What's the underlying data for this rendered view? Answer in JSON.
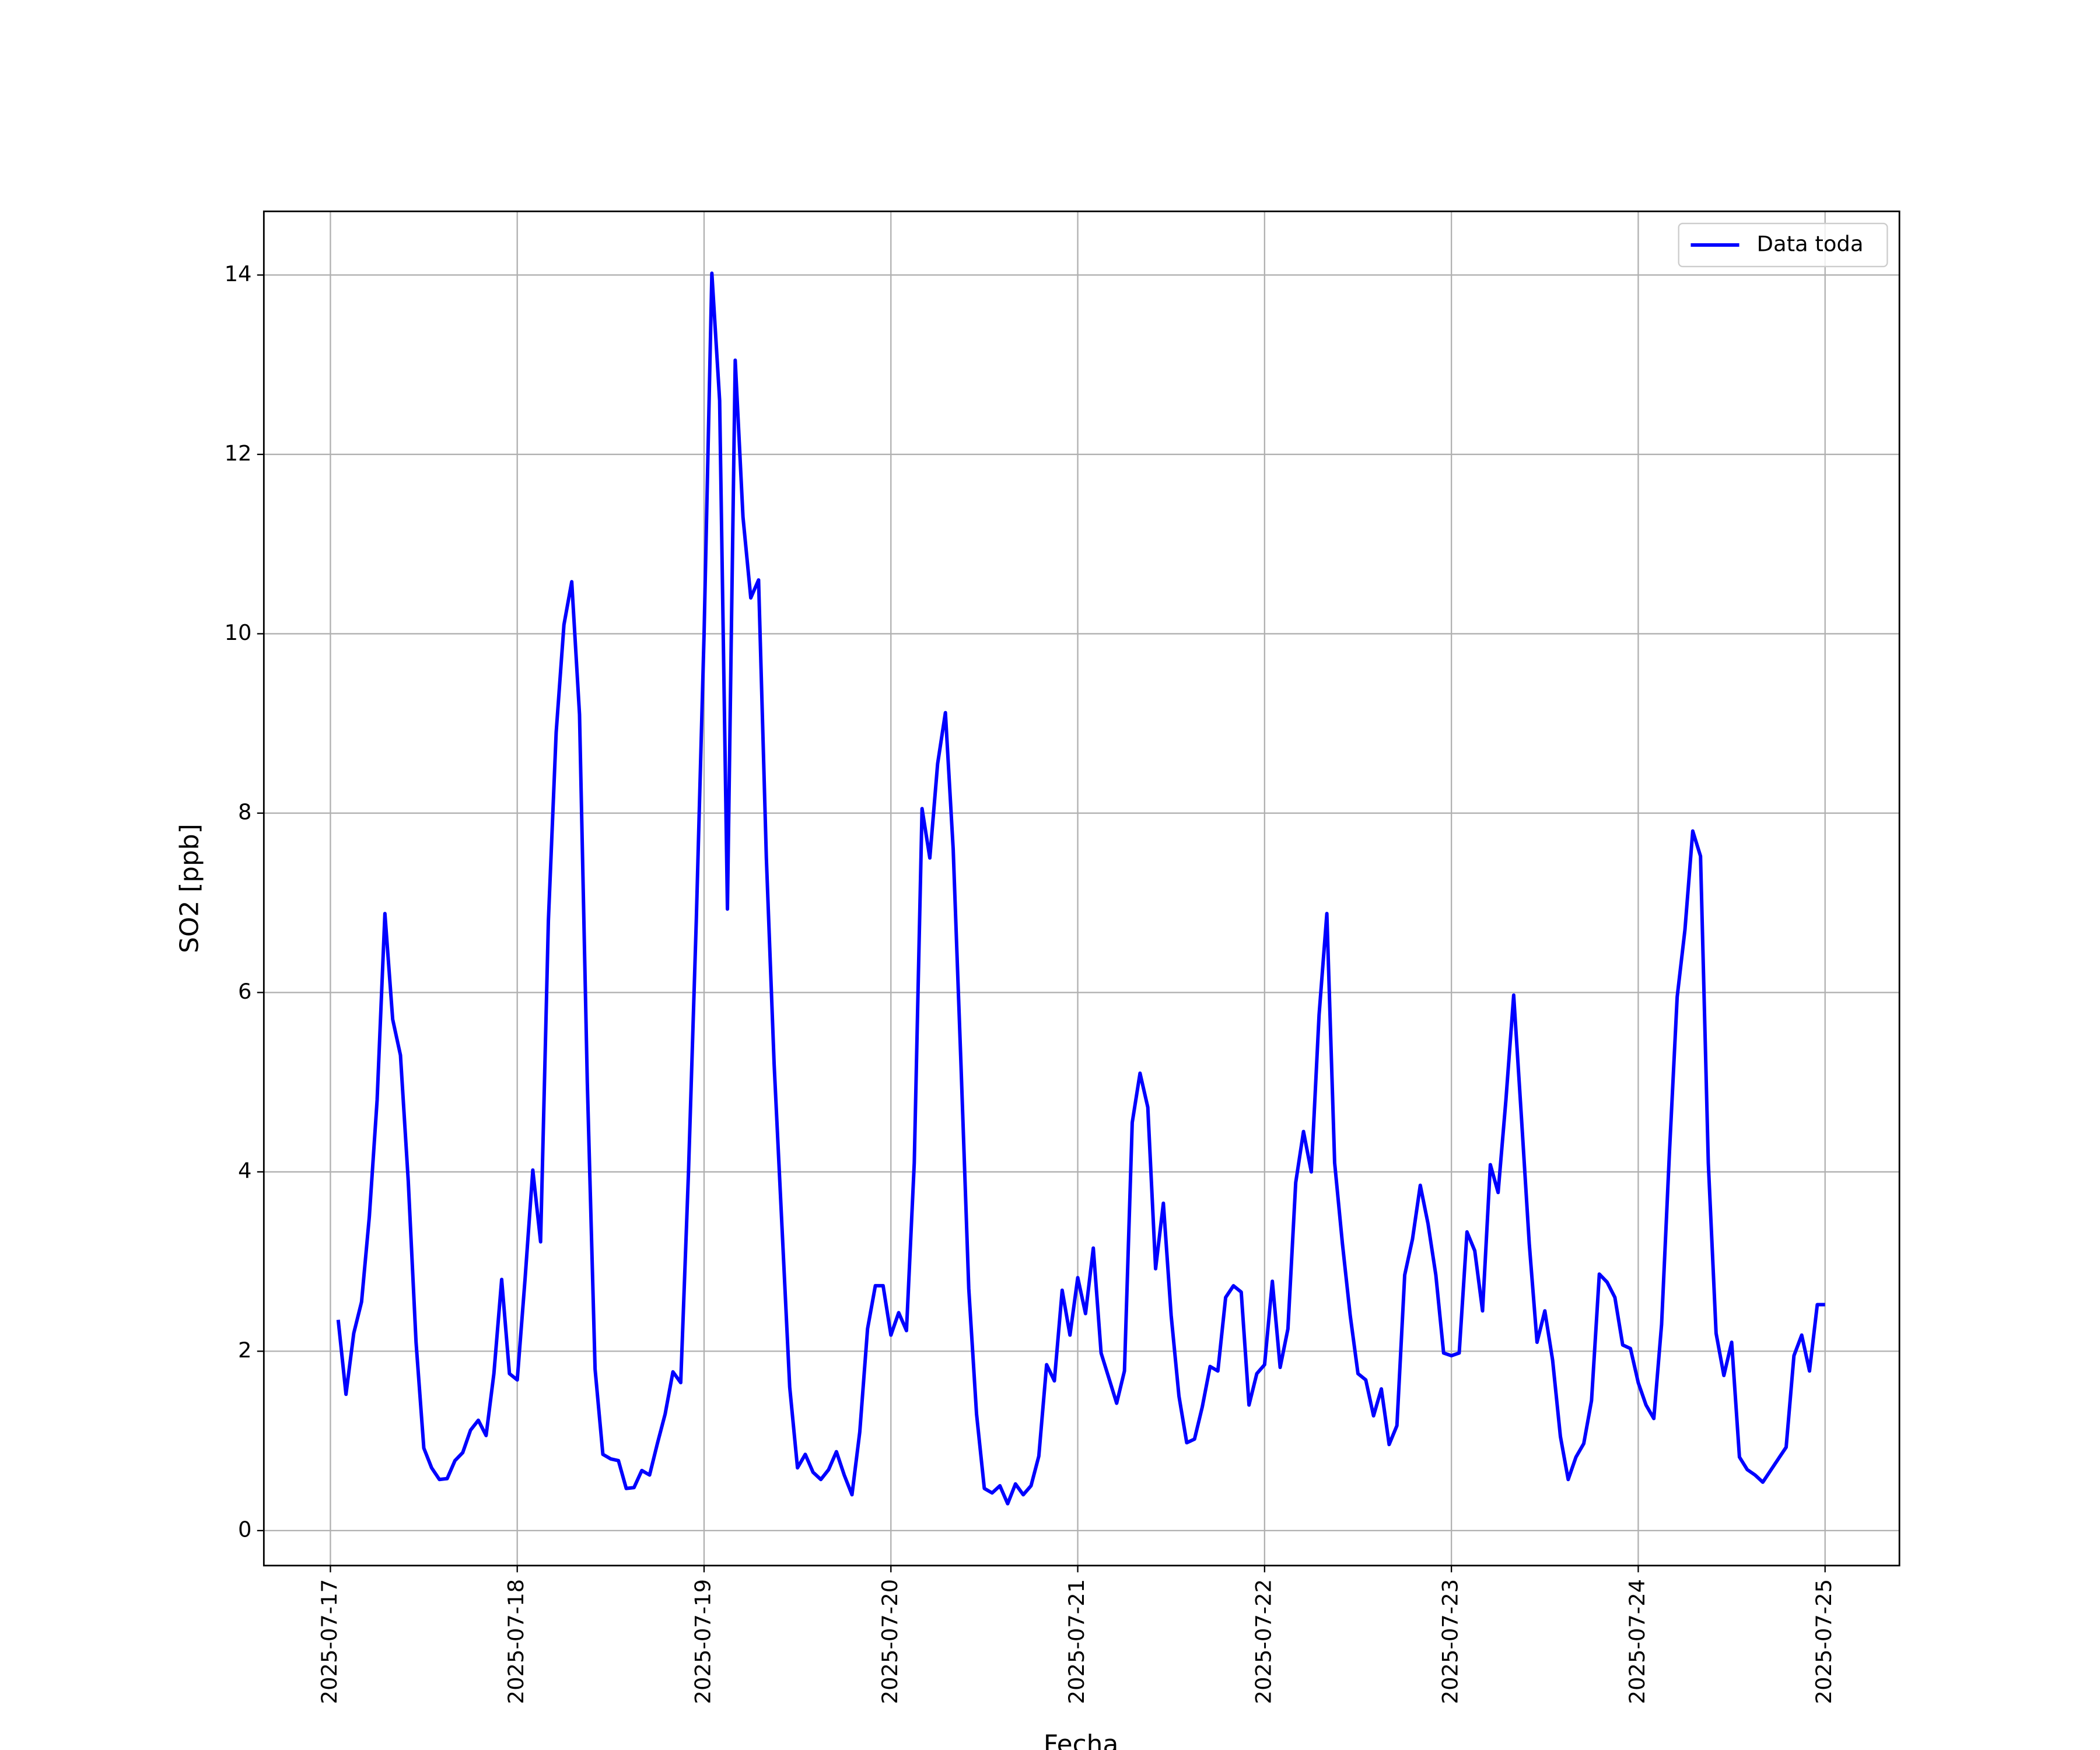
{
  "chart_data": {
    "type": "line",
    "xlabel": "Fecha",
    "ylabel": "SO2 [ppb]",
    "x": [
      "2025-07-17 01:00",
      "2025-07-17 02:00",
      "2025-07-17 03:00",
      "2025-07-17 04:00",
      "2025-07-17 05:00",
      "2025-07-17 06:00",
      "2025-07-17 07:00",
      "2025-07-17 08:00",
      "2025-07-17 09:00",
      "2025-07-17 10:00",
      "2025-07-17 11:00",
      "2025-07-17 12:00",
      "2025-07-17 13:00",
      "2025-07-17 14:00",
      "2025-07-17 15:00",
      "2025-07-17 16:00",
      "2025-07-17 17:00",
      "2025-07-17 18:00",
      "2025-07-17 19:00",
      "2025-07-17 20:00",
      "2025-07-17 21:00",
      "2025-07-17 22:00",
      "2025-07-17 23:00",
      "2025-07-18 00:00",
      "2025-07-18 01:00",
      "2025-07-18 02:00",
      "2025-07-18 03:00",
      "2025-07-18 04:00",
      "2025-07-18 05:00",
      "2025-07-18 06:00",
      "2025-07-18 07:00",
      "2025-07-18 08:00",
      "2025-07-18 09:00",
      "2025-07-18 10:00",
      "2025-07-18 11:00",
      "2025-07-18 12:00",
      "2025-07-18 13:00",
      "2025-07-18 14:00",
      "2025-07-18 15:00",
      "2025-07-18 16:00",
      "2025-07-18 17:00",
      "2025-07-18 18:00",
      "2025-07-18 19:00",
      "2025-07-18 20:00",
      "2025-07-18 21:00",
      "2025-07-18 22:00",
      "2025-07-18 23:00",
      "2025-07-19 00:00",
      "2025-07-19 01:00",
      "2025-07-19 02:00",
      "2025-07-19 03:00",
      "2025-07-19 04:00",
      "2025-07-19 05:00",
      "2025-07-19 06:00",
      "2025-07-19 07:00",
      "2025-07-19 08:00",
      "2025-07-19 09:00",
      "2025-07-19 10:00",
      "2025-07-19 11:00",
      "2025-07-19 12:00",
      "2025-07-19 13:00",
      "2025-07-19 14:00",
      "2025-07-19 15:00",
      "2025-07-19 16:00",
      "2025-07-19 17:00",
      "2025-07-19 18:00",
      "2025-07-19 19:00",
      "2025-07-19 20:00",
      "2025-07-19 21:00",
      "2025-07-19 22:00",
      "2025-07-19 23:00",
      "2025-07-20 00:00",
      "2025-07-20 01:00",
      "2025-07-20 02:00",
      "2025-07-20 03:00",
      "2025-07-20 04:00",
      "2025-07-20 05:00",
      "2025-07-20 06:00",
      "2025-07-20 07:00",
      "2025-07-20 08:00",
      "2025-07-20 09:00",
      "2025-07-20 10:00",
      "2025-07-20 11:00",
      "2025-07-20 12:00",
      "2025-07-20 13:00",
      "2025-07-20 14:00",
      "2025-07-20 15:00",
      "2025-07-20 16:00",
      "2025-07-20 17:00",
      "2025-07-20 18:00",
      "2025-07-20 19:00",
      "2025-07-20 20:00",
      "2025-07-20 21:00",
      "2025-07-20 22:00",
      "2025-07-20 23:00",
      "2025-07-21 00:00",
      "2025-07-21 01:00",
      "2025-07-21 02:00",
      "2025-07-21 03:00",
      "2025-07-21 04:00",
      "2025-07-21 05:00",
      "2025-07-21 06:00",
      "2025-07-21 07:00",
      "2025-07-21 08:00",
      "2025-07-21 09:00",
      "2025-07-21 10:00",
      "2025-07-21 11:00",
      "2025-07-21 12:00",
      "2025-07-21 13:00",
      "2025-07-21 14:00",
      "2025-07-21 15:00",
      "2025-07-21 16:00",
      "2025-07-21 17:00",
      "2025-07-21 18:00",
      "2025-07-21 19:00",
      "2025-07-21 20:00",
      "2025-07-21 21:00",
      "2025-07-21 22:00",
      "2025-07-21 23:00",
      "2025-07-22 00:00",
      "2025-07-22 01:00",
      "2025-07-22 02:00",
      "2025-07-22 03:00",
      "2025-07-22 04:00",
      "2025-07-22 05:00",
      "2025-07-22 06:00",
      "2025-07-22 07:00",
      "2025-07-22 08:00",
      "2025-07-22 09:00",
      "2025-07-22 10:00",
      "2025-07-22 11:00",
      "2025-07-22 12:00",
      "2025-07-22 13:00",
      "2025-07-22 14:00",
      "2025-07-22 15:00",
      "2025-07-22 16:00",
      "2025-07-22 17:00",
      "2025-07-22 18:00",
      "2025-07-22 19:00",
      "2025-07-22 20:00",
      "2025-07-22 21:00",
      "2025-07-22 22:00",
      "2025-07-22 23:00",
      "2025-07-23 00:00",
      "2025-07-23 01:00",
      "2025-07-23 02:00",
      "2025-07-23 03:00",
      "2025-07-23 04:00",
      "2025-07-23 05:00",
      "2025-07-23 06:00",
      "2025-07-23 07:00",
      "2025-07-23 08:00",
      "2025-07-23 09:00",
      "2025-07-23 10:00",
      "2025-07-23 11:00",
      "2025-07-23 12:00",
      "2025-07-23 13:00",
      "2025-07-23 14:00",
      "2025-07-23 15:00",
      "2025-07-23 16:00",
      "2025-07-23 17:00",
      "2025-07-23 18:00",
      "2025-07-23 19:00",
      "2025-07-23 20:00",
      "2025-07-23 21:00",
      "2025-07-23 22:00",
      "2025-07-23 23:00",
      "2025-07-24 00:00",
      "2025-07-24 01:00",
      "2025-07-24 02:00",
      "2025-07-24 03:00",
      "2025-07-24 04:00",
      "2025-07-24 05:00",
      "2025-07-24 06:00",
      "2025-07-24 07:00",
      "2025-07-24 08:00",
      "2025-07-24 09:00",
      "2025-07-24 10:00",
      "2025-07-24 11:00",
      "2025-07-24 12:00",
      "2025-07-24 13:00",
      "2025-07-24 14:00",
      "2025-07-24 15:00",
      "2025-07-24 16:00",
      "2025-07-24 17:00",
      "2025-07-24 18:00",
      "2025-07-24 19:00",
      "2025-07-24 20:00",
      "2025-07-24 21:00",
      "2025-07-24 22:00",
      "2025-07-24 23:00",
      "2025-07-25 00:00"
    ],
    "series": [
      {
        "name": "Data toda",
        "color": "#0000ff",
        "values": [
          2.35,
          1.52,
          2.2,
          2.55,
          3.5,
          4.8,
          6.88,
          5.7,
          5.3,
          3.9,
          2.1,
          0.92,
          0.7,
          0.57,
          0.58,
          0.78,
          0.87,
          1.12,
          1.23,
          1.06,
          1.75,
          2.8,
          1.75,
          1.68,
          2.8,
          4.02,
          3.22,
          6.8,
          8.9,
          10.1,
          10.58,
          9.1,
          5.0,
          1.8,
          0.85,
          0.8,
          0.78,
          0.47,
          0.48,
          0.67,
          0.62,
          0.97,
          1.3,
          1.77,
          1.65,
          4.0,
          6.8,
          10.0,
          14.02,
          12.6,
          6.93,
          13.05,
          11.3,
          10.4,
          10.6,
          7.5,
          5.2,
          3.4,
          1.6,
          0.7,
          0.85,
          0.65,
          0.57,
          0.68,
          0.88,
          0.62,
          0.4,
          1.1,
          2.25,
          2.73,
          2.73,
          2.18,
          2.43,
          2.23,
          4.1,
          8.05,
          7.5,
          8.55,
          9.12,
          7.6,
          5.2,
          2.7,
          1.3,
          0.47,
          0.42,
          0.5,
          0.3,
          0.52,
          0.4,
          0.5,
          0.83,
          1.85,
          1.67,
          2.68,
          2.18,
          2.82,
          2.42,
          3.15,
          1.98,
          1.7,
          1.42,
          1.78,
          4.55,
          5.1,
          4.72,
          2.92,
          3.65,
          2.4,
          1.5,
          0.98,
          1.02,
          1.38,
          1.83,
          1.78,
          2.6,
          2.73,
          2.66,
          1.4,
          1.75,
          1.85,
          2.78,
          1.82,
          2.25,
          3.88,
          4.45,
          4.0,
          5.75,
          6.88,
          4.1,
          3.2,
          2.4,
          1.75,
          1.68,
          1.28,
          1.58,
          0.96,
          1.17,
          2.85,
          3.25,
          3.85,
          3.42,
          2.85,
          1.98,
          1.95,
          1.98,
          3.33,
          3.12,
          2.45,
          4.08,
          3.77,
          4.8,
          5.97,
          4.6,
          3.2,
          2.1,
          2.45,
          1.9,
          1.05,
          0.57,
          0.82,
          0.97,
          1.45,
          2.86,
          2.77,
          2.6,
          2.07,
          2.03,
          1.65,
          1.4,
          1.25,
          2.3,
          4.2,
          5.95,
          6.7,
          7.8,
          7.52,
          4.1,
          2.2,
          1.73,
          2.1,
          0.82,
          0.68,
          0.62,
          0.54,
          0.67,
          0.8,
          0.93,
          1.95,
          2.18,
          1.78,
          2.52,
          2.52
        ]
      }
    ],
    "xlim": [
      "2025-07-16 15:27",
      "2025-07-25 09:33"
    ],
    "xticks": [
      "2025-07-17",
      "2025-07-18",
      "2025-07-19",
      "2025-07-20",
      "2025-07-21",
      "2025-07-22",
      "2025-07-23",
      "2025-07-24",
      "2025-07-25"
    ],
    "ylim": [
      -0.39,
      14.71
    ],
    "yticks": [
      0,
      2,
      4,
      6,
      8,
      10,
      12,
      14
    ],
    "grid": true,
    "legend": "upper right"
  }
}
